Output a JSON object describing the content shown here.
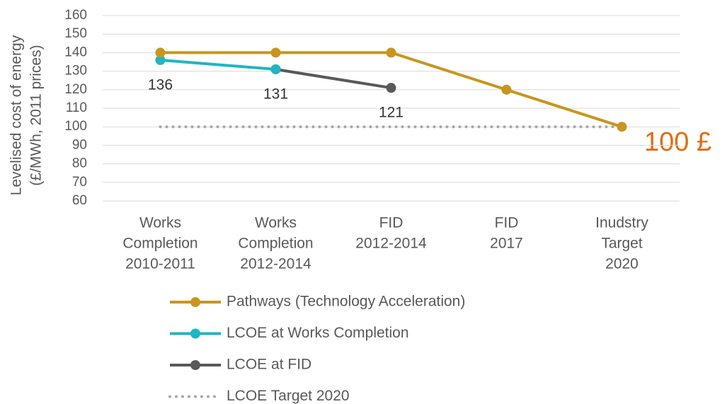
{
  "chart_data": {
    "type": "line",
    "ylabel": [
      "Levelised cost of energy",
      "(£/MWh, 2011 prices)"
    ],
    "categories": [
      [
        "Works",
        "Completion",
        "2010-2011"
      ],
      [
        "Works",
        "Completion",
        "2012-2014"
      ],
      [
        "FID",
        "2012-2014"
      ],
      [
        "FID",
        "2017"
      ],
      [
        "Inudstry",
        "Target",
        "2020"
      ]
    ],
    "series": [
      {
        "name": "Pathways (Technology Acceleration)",
        "color": "#c8961e",
        "line_style": "solid",
        "markers": true,
        "values": [
          140,
          140,
          140,
          120,
          100
        ]
      },
      {
        "name": "LCOE at Works Completion",
        "color": "#1fb5c4",
        "line_style": "solid",
        "markers": true,
        "data_labels": true,
        "values": [
          136,
          131,
          null,
          null,
          null
        ]
      },
      {
        "name": "LCOE at FID",
        "color": "#595959",
        "line_style": "solid",
        "markers": true,
        "data_labels": "last",
        "values": [
          null,
          131,
          121,
          null,
          null
        ]
      },
      {
        "name": "LCOE Target 2020",
        "color": "#a6a6a6",
        "line_style": "dotted",
        "markers": false,
        "values": [
          100,
          100,
          100,
          100,
          100
        ]
      }
    ],
    "annotation": "100 £",
    "annotation_color": "#e46c0a",
    "ylim": [
      60,
      160
    ],
    "yticks": [
      60,
      70,
      80,
      90,
      100,
      110,
      120,
      130,
      140,
      150,
      160
    ],
    "grid": true,
    "legend": "bottom"
  }
}
